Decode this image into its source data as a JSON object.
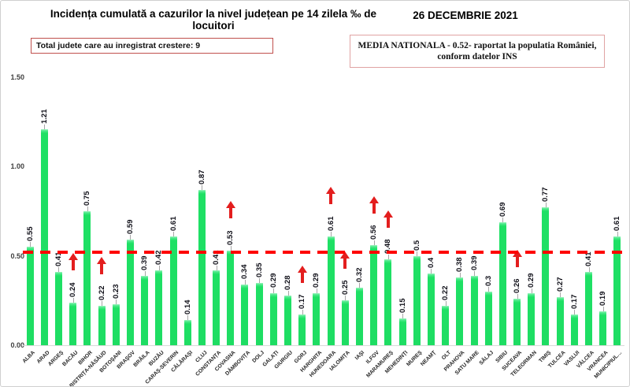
{
  "header": {
    "title": "Incidența cumulată a cazurilor la nivel județean pe 14 zilela ‰ de locuitori",
    "date": "26 DECEMBRIE 2021",
    "growth_note": "Total judete care au inregistrat crestere: 9",
    "media_line1": "MEDIA NATIONALA  - 0.52-  raportat la populatia României,",
    "media_line2": "conform datelor INS"
  },
  "chart_data": {
    "type": "bar",
    "title": "Incidența cumulată a cazurilor la nivel județean pe 14 zilela ‰ de locuitori",
    "xlabel": "",
    "ylabel": "",
    "ylim": [
      0,
      1.5
    ],
    "yticks": [
      {
        "label": "0.00",
        "value": 0
      },
      {
        "label": "0.50",
        "value": 0.5
      },
      {
        "label": "1.00",
        "value": 1
      },
      {
        "label": "1.50",
        "value": 1.5
      }
    ],
    "grid": false,
    "national_average": 0.52,
    "national_average_line_color": "#fe0000",
    "bar_color": "#1edd63",
    "increase_arrow_color": "#e31e1e",
    "total_counties_with_increase": 9,
    "counties": [
      {
        "name": "ALBA",
        "value": 0.55,
        "label": "0.55",
        "increase": false
      },
      {
        "name": "ARAD",
        "value": 1.21,
        "label": "1.21",
        "increase": false
      },
      {
        "name": "ARGEȘ",
        "value": 0.41,
        "label": "0.41",
        "increase": false
      },
      {
        "name": "BACĂU",
        "value": 0.24,
        "label": "0.24",
        "increase": true
      },
      {
        "name": "BIHOR",
        "value": 0.75,
        "label": "0.75",
        "increase": false
      },
      {
        "name": "BISTRIȚA-NĂSĂUD",
        "value": 0.22,
        "label": "0.22",
        "increase": true
      },
      {
        "name": "BOTOȘANI",
        "value": 0.23,
        "label": "0.23",
        "increase": false
      },
      {
        "name": "BRAȘOV",
        "value": 0.59,
        "label": "0.59",
        "increase": false
      },
      {
        "name": "BRĂILA",
        "value": 0.39,
        "label": "0.39",
        "increase": false
      },
      {
        "name": "BUZĂU",
        "value": 0.42,
        "label": "0.42",
        "increase": false
      },
      {
        "name": "CARAȘ-SEVERIN",
        "value": 0.61,
        "label": "0.61",
        "increase": false
      },
      {
        "name": "CĂLĂRAȘI",
        "value": 0.14,
        "label": "0.14",
        "increase": false
      },
      {
        "name": "CLUJ",
        "value": 0.87,
        "label": "0.87",
        "increase": false
      },
      {
        "name": "CONSTANȚA",
        "value": 0.42,
        "label": "0.42",
        "increase": false
      },
      {
        "name": "COVASNA",
        "value": 0.53,
        "label": "0.53",
        "increase": true
      },
      {
        "name": "DÂMBOVIȚA",
        "value": 0.34,
        "label": "0.34",
        "increase": false
      },
      {
        "name": "DOLJ",
        "value": 0.35,
        "label": "0.35",
        "increase": false
      },
      {
        "name": "GALAȚI",
        "value": 0.29,
        "label": "0.29",
        "increase": false
      },
      {
        "name": "GIURGIU",
        "value": 0.28,
        "label": "0.28",
        "increase": false
      },
      {
        "name": "GORJ",
        "value": 0.17,
        "label": "0.17",
        "increase": true
      },
      {
        "name": "HARGHITA",
        "value": 0.29,
        "label": "0.29",
        "increase": false
      },
      {
        "name": "HUNEDOARA",
        "value": 0.61,
        "label": "0.61",
        "increase": true
      },
      {
        "name": "IALOMIȚA",
        "value": 0.25,
        "label": "0.25",
        "increase": true
      },
      {
        "name": "IAȘI",
        "value": 0.32,
        "label": "0.32",
        "increase": false
      },
      {
        "name": "ILFOV",
        "value": 0.56,
        "label": "0.56",
        "increase": true
      },
      {
        "name": "MARAMUREȘ",
        "value": 0.48,
        "label": "0.48",
        "increase": true
      },
      {
        "name": "MEHEDINȚI",
        "value": 0.15,
        "label": "0.15",
        "increase": false
      },
      {
        "name": "MUREȘ",
        "value": 0.5,
        "label": "0.5",
        "increase": false
      },
      {
        "name": "NEAMȚ",
        "value": 0.4,
        "label": "0.4",
        "increase": false
      },
      {
        "name": "OLT",
        "value": 0.22,
        "label": "0.22",
        "increase": false
      },
      {
        "name": "PRAHOVA",
        "value": 0.38,
        "label": "0.38",
        "increase": false
      },
      {
        "name": "SATU MARE",
        "value": 0.39,
        "label": "0.39",
        "increase": false
      },
      {
        "name": "SĂLAJ",
        "value": 0.3,
        "label": "0.3",
        "increase": false
      },
      {
        "name": "SIBIU",
        "value": 0.69,
        "label": "0.69",
        "increase": false
      },
      {
        "name": "SUCEAVA",
        "value": 0.26,
        "label": "0.26",
        "increase": true
      },
      {
        "name": "TELEORMAN",
        "value": 0.29,
        "label": "0.29",
        "increase": false
      },
      {
        "name": "TIMIȘ",
        "value": 0.77,
        "label": "0.77",
        "increase": false
      },
      {
        "name": "TULCEA",
        "value": 0.27,
        "label": "0.27",
        "increase": false
      },
      {
        "name": "VASLUI",
        "value": 0.17,
        "label": "0.17",
        "increase": false
      },
      {
        "name": "VÂLCEA",
        "value": 0.41,
        "label": "0.41",
        "increase": false
      },
      {
        "name": "VRANCEA",
        "value": 0.19,
        "label": "0.19",
        "increase": false
      },
      {
        "name": "MUNICIPIUL…",
        "value": 0.61,
        "label": "0.61",
        "increase": false
      }
    ]
  }
}
